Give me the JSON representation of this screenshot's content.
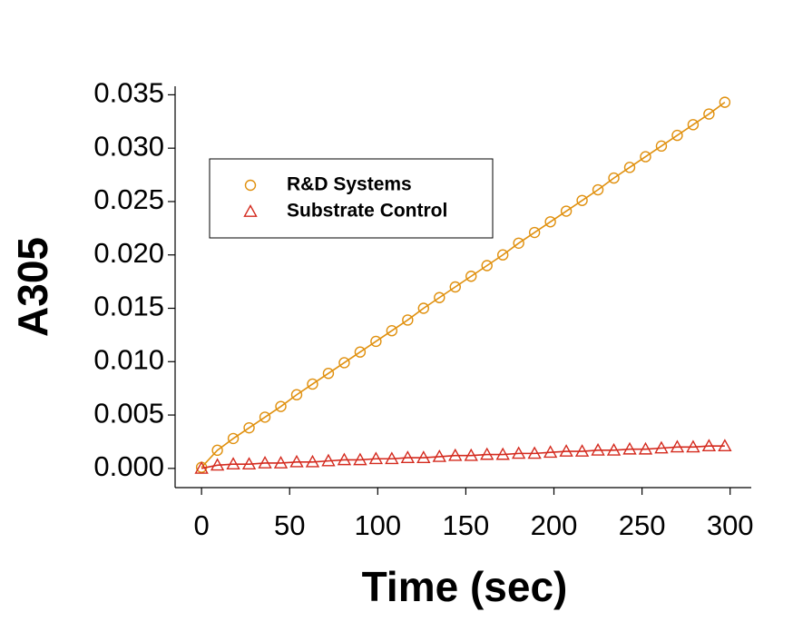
{
  "chart_data": {
    "type": "scatter",
    "x_label": "Time (sec)",
    "y_label": "A305",
    "x": [
      0,
      9,
      18,
      27,
      36,
      45,
      54,
      63,
      72,
      81,
      90,
      99,
      108,
      117,
      126,
      135,
      144,
      153,
      162,
      171,
      180,
      189,
      198,
      207,
      216,
      225,
      234,
      243,
      252,
      261,
      270,
      279,
      288,
      297
    ],
    "series": [
      {
        "name": "R&D Systems",
        "color": "#e0900e",
        "marker": "circle",
        "values": [
          0.0001,
          0.0017,
          0.0028,
          0.0038,
          0.0048,
          0.0058,
          0.0069,
          0.0079,
          0.0089,
          0.0099,
          0.0109,
          0.0119,
          0.0129,
          0.0139,
          0.015,
          0.016,
          0.017,
          0.018,
          0.019,
          0.02,
          0.0211,
          0.0221,
          0.0231,
          0.0241,
          0.0251,
          0.0261,
          0.0272,
          0.0282,
          0.0292,
          0.0302,
          0.0312,
          0.0322,
          0.0332,
          0.0343
        ]
      },
      {
        "name": "Substrate Control",
        "color": "#d42a1e",
        "marker": "triangle",
        "values": [
          0.0,
          0.0003,
          0.0004,
          0.0004,
          0.0005,
          0.0005,
          0.0006,
          0.0006,
          0.0007,
          0.0008,
          0.0008,
          0.0009,
          0.0009,
          0.001,
          0.001,
          0.0011,
          0.0012,
          0.0012,
          0.0013,
          0.0013,
          0.0014,
          0.0014,
          0.0015,
          0.0016,
          0.0016,
          0.0017,
          0.0017,
          0.0018,
          0.0018,
          0.0019,
          0.002,
          0.002,
          0.0021,
          0.0021
        ]
      }
    ],
    "xlim": [
      -15,
      312
    ],
    "xticks": [
      0,
      50,
      100,
      150,
      200,
      250,
      300
    ],
    "ylim": [
      -0.0018,
      0.0358
    ],
    "yticks": [
      {
        "value": 0,
        "label": "0.000"
      },
      {
        "value": 0.005,
        "label": "0.005"
      },
      {
        "value": 0.01,
        "label": "0.010"
      },
      {
        "value": 0.015,
        "label": "0.015"
      },
      {
        "value": 0.02,
        "label": "0.020"
      },
      {
        "value": 0.025,
        "label": "0.025"
      },
      {
        "value": 0.03,
        "label": "0.030"
      },
      {
        "value": 0.035,
        "label": "0.035"
      }
    ]
  }
}
